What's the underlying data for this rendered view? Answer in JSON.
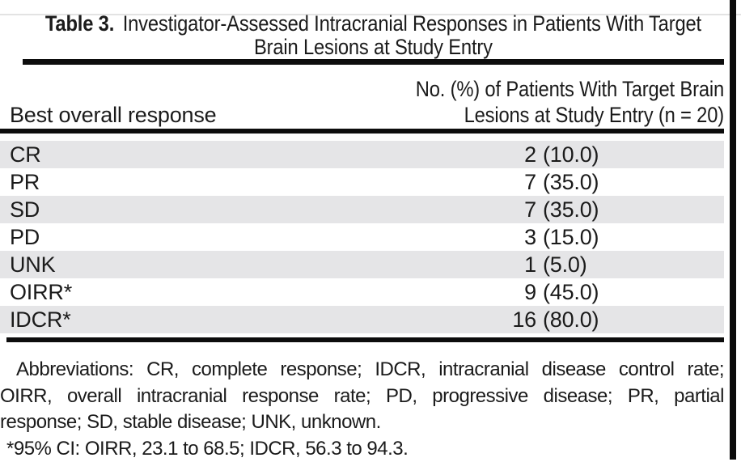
{
  "title": {
    "label": "Table 3.",
    "text_line1": "Investigator-Assessed Intracranial Responses in Patients With Target",
    "text_line2": "Brain Lesions at Study Entry"
  },
  "columns": {
    "response_header": "Best overall response",
    "value_header_line1": "No. (%) of Patients With Target Brain",
    "value_header_line2": "Lesions at Study Entry (n = 20)"
  },
  "rows": [
    {
      "label": "CR",
      "n": "2",
      "pct": "(10.0)"
    },
    {
      "label": "PR",
      "n": "7",
      "pct": "(35.0)"
    },
    {
      "label": "SD",
      "n": "7",
      "pct": "(35.0)"
    },
    {
      "label": "PD",
      "n": "3",
      "pct": "(15.0)"
    },
    {
      "label": "UNK",
      "n": "1",
      "pct": "(5.0)"
    },
    {
      "label": "OIRR*",
      "n": "9",
      "pct": "(45.0)"
    },
    {
      "label": "IDCR*",
      "n": "16",
      "pct": "(80.0)"
    }
  ],
  "footnotes": {
    "lines": [
      "Abbreviations: CR, complete response; IDCR, intracranial disease control rate;",
      "OIRR, overall intracranial response rate; PD, progressive disease; PR, partial",
      "response; SD, stable disease; UNK, unknown.",
      "*95% CI: OIRR, 23.1 to 68.5; IDCR, 56.3 to 94.3."
    ]
  },
  "colors": {
    "row_shade": "#e5e5e7",
    "rule": "#0d0d0d",
    "text": "#1b1b1b",
    "scan_border": "#0b0b0b"
  },
  "chart_data": {
    "type": "table",
    "title": "Table 3. Investigator-Assessed Intracranial Responses in Patients With Target Brain Lesions at Study Entry",
    "columns": [
      "Best overall response",
      "No. (%) of Patients With Target Brain Lesions at Study Entry (n = 20)"
    ],
    "rows": [
      [
        "CR",
        "2 (10.0)"
      ],
      [
        "PR",
        "7 (35.0)"
      ],
      [
        "SD",
        "7 (35.0)"
      ],
      [
        "PD",
        "3 (15.0)"
      ],
      [
        "UNK",
        "1 (5.0)"
      ],
      [
        "OIRR*",
        "9 (45.0)"
      ],
      [
        "IDCR*",
        "16 (80.0)"
      ]
    ],
    "footnote_abbreviations": "Abbreviations: CR, complete response; IDCR, intracranial disease control rate; OIRR, overall intracranial response rate; PD, progressive disease; PR, partial response; SD, stable disease; UNK, unknown.",
    "footnote_ci": "*95% CI: OIRR, 23.1 to 68.5; IDCR, 56.3 to 94.3."
  }
}
